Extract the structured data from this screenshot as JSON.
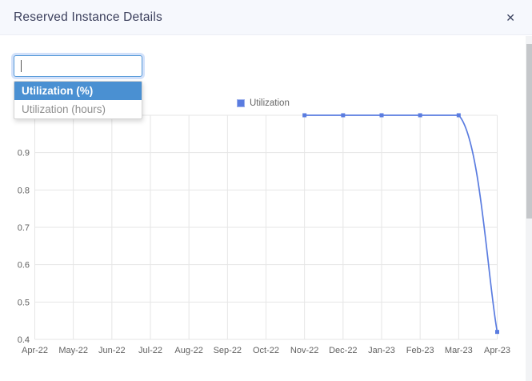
{
  "header": {
    "title": "Reserved Instance Details"
  },
  "icons": {
    "close": "✕"
  },
  "filter": {
    "input_value": "",
    "dropdown_options": [
      {
        "label": "Utilization (%)",
        "selected": true
      },
      {
        "label": "Utilization (hours)",
        "selected": false
      }
    ]
  },
  "colors": {
    "accent": "#5a7ce0",
    "dropdown_selected_bg": "#4a90d2",
    "header_bg": "#f6f8fd",
    "grid": "#e6e6e6",
    "axis_text": "#616161"
  },
  "chart_data": {
    "type": "line",
    "title": "",
    "xlabel": "",
    "ylabel": "",
    "categories": [
      "Apr-22",
      "May-22",
      "Jun-22",
      "Jul-22",
      "Aug-22",
      "Sep-22",
      "Oct-22",
      "Nov-22",
      "Dec-22",
      "Jan-23",
      "Feb-23",
      "Mar-23",
      "Apr-23"
    ],
    "series": [
      {
        "name": "Utilization",
        "color": "#5a7ce0",
        "values": [
          null,
          null,
          null,
          null,
          null,
          null,
          null,
          1.0,
          1.0,
          1.0,
          1.0,
          1.0,
          0.42
        ]
      }
    ],
    "y_axis": {
      "min": 0.4,
      "max": 1.0,
      "grid_step": 0.1,
      "labeled_ticks": [
        "0.4",
        "0.5",
        "0.6",
        "0.7",
        "0.8",
        "0.9"
      ]
    },
    "legend": {
      "position": "top",
      "entries": [
        "Utilization"
      ]
    },
    "grid": true
  }
}
